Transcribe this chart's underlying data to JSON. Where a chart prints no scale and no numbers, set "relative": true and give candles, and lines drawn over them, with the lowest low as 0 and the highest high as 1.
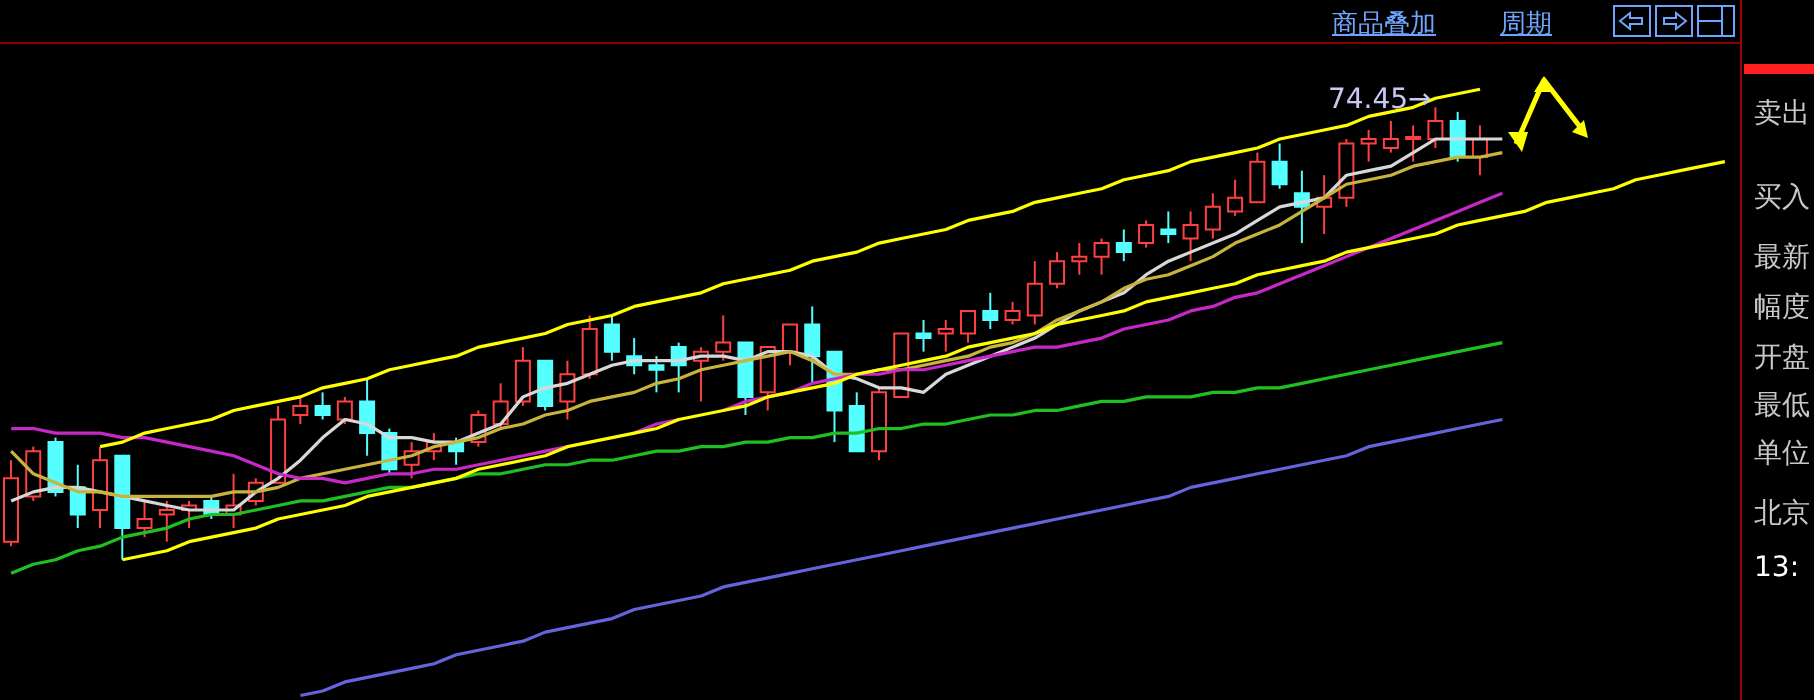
{
  "chart_data": {
    "type": "candlestick",
    "relative": true,
    "categories": [
      null,
      null,
      null,
      null,
      null,
      null,
      null,
      null,
      null,
      null,
      null,
      null,
      null,
      null,
      null,
      null,
      null,
      null,
      null,
      null,
      null,
      null,
      null,
      null,
      null,
      null,
      null,
      null,
      null,
      null,
      null,
      null,
      null,
      null,
      null,
      null,
      null,
      null,
      null,
      null,
      null,
      null,
      null,
      null,
      null,
      null,
      null,
      null,
      null,
      null,
      null,
      null,
      null,
      null,
      null,
      null,
      null,
      null,
      null,
      null,
      null,
      null,
      null,
      null,
      null,
      null,
      null,
      null,
      null,
      null,
      null,
      null,
      null,
      null,
      null,
      null,
      null,
      null
    ],
    "ohlc": [
      [
        0.04,
        0.22,
        0.03,
        0.18
      ],
      [
        0.14,
        0.25,
        0.13,
        0.24
      ],
      [
        0.26,
        0.27,
        0.14,
        0.15
      ],
      [
        0.16,
        0.21,
        0.07,
        0.1
      ],
      [
        0.11,
        0.25,
        0.07,
        0.22
      ],
      [
        0.23,
        0.23,
        0,
        0.07
      ],
      [
        0.07,
        0.13,
        0.05,
        0.09
      ],
      [
        0.1,
        0.13,
        0.04,
        0.11
      ],
      [
        0.11,
        0.13,
        0.07,
        0.12
      ],
      [
        0.13,
        0.14,
        0.09,
        0.1
      ],
      [
        0.1,
        0.19,
        0.07,
        0.12
      ],
      [
        0.13,
        0.18,
        0.12,
        0.17
      ],
      [
        0.17,
        0.34,
        0.17,
        0.31
      ],
      [
        0.32,
        0.36,
        0.3,
        0.34
      ],
      [
        0.34,
        0.37,
        0.31,
        0.32
      ],
      [
        0.31,
        0.36,
        0.3,
        0.35
      ],
      [
        0.35,
        0.4,
        0.23,
        0.28
      ],
      [
        0.28,
        0.29,
        0.19,
        0.2
      ],
      [
        0.21,
        0.26,
        0.18,
        0.24
      ],
      [
        0.24,
        0.28,
        0.22,
        0.26
      ],
      [
        0.26,
        0.27,
        0.21,
        0.24
      ],
      [
        0.26,
        0.33,
        0.25,
        0.32
      ],
      [
        0.3,
        0.39,
        0.29,
        0.35
      ],
      [
        0.35,
        0.47,
        0.34,
        0.44
      ],
      [
        0.44,
        0.44,
        0.33,
        0.34
      ],
      [
        0.35,
        0.44,
        0.31,
        0.41
      ],
      [
        0.41,
        0.54,
        0.4,
        0.51
      ],
      [
        0.52,
        0.54,
        0.44,
        0.46
      ],
      [
        0.45,
        0.49,
        0.41,
        0.43
      ],
      [
        0.43,
        0.45,
        0.37,
        0.42
      ],
      [
        0.47,
        0.48,
        0.37,
        0.43
      ],
      [
        0.44,
        0.47,
        0.35,
        0.46
      ],
      [
        0.46,
        0.54,
        0.44,
        0.48
      ],
      [
        0.48,
        0.48,
        0.32,
        0.36
      ],
      [
        0.37,
        0.47,
        0.33,
        0.47
      ],
      [
        0.46,
        0.52,
        0.43,
        0.52
      ],
      [
        0.52,
        0.56,
        0.39,
        0.45
      ],
      [
        0.46,
        0.46,
        0.26,
        0.33
      ],
      [
        0.34,
        0.37,
        0.24,
        0.24
      ],
      [
        0.24,
        0.38,
        0.22,
        0.37
      ],
      [
        0.36,
        0.5,
        0.36,
        0.5
      ],
      [
        0.5,
        0.53,
        0.46,
        0.49
      ],
      [
        0.5,
        0.53,
        0.46,
        0.51
      ],
      [
        0.5,
        0.55,
        0.48,
        0.55
      ],
      [
        0.55,
        0.59,
        0.51,
        0.53
      ],
      [
        0.53,
        0.57,
        0.52,
        0.55
      ],
      [
        0.54,
        0.66,
        0.52,
        0.61
      ],
      [
        0.61,
        0.68,
        0.6,
        0.66
      ],
      [
        0.66,
        0.7,
        0.63,
        0.67
      ],
      [
        0.67,
        0.71,
        0.63,
        0.7
      ],
      [
        0.7,
        0.73,
        0.66,
        0.68
      ],
      [
        0.7,
        0.75,
        0.69,
        0.74
      ],
      [
        0.73,
        0.77,
        0.7,
        0.72
      ],
      [
        0.71,
        0.77,
        0.66,
        0.74
      ],
      [
        0.73,
        0.81,
        0.71,
        0.78
      ],
      [
        0.77,
        0.84,
        0.76,
        0.8
      ],
      [
        0.79,
        0.9,
        0.79,
        0.88
      ],
      [
        0.88,
        0.92,
        0.82,
        0.83
      ],
      [
        0.81,
        0.86,
        0.7,
        0.78
      ],
      [
        0.78,
        0.85,
        0.72,
        0.8
      ],
      [
        0.8,
        0.93,
        0.78,
        0.92
      ],
      [
        0.92,
        0.95,
        0.88,
        0.93
      ],
      [
        0.91,
        0.97,
        0.9,
        0.93
      ],
      [
        0.93,
        0.96,
        0.88,
        0.93
      ],
      [
        0.93,
        1,
        0.91,
        0.97
      ],
      [
        0.97,
        0.99,
        0.88,
        0.89
      ],
      [
        0.89,
        0.96,
        0.85,
        0.93
      ],
      null,
      null,
      null,
      null,
      null,
      null,
      null,
      null,
      null,
      null,
      null
    ],
    "series": [
      {
        "type": "line",
        "color": "#d8d8d8",
        "values": [
          0.13,
          0.15,
          0.16,
          0.16,
          0.15,
          0.14,
          0.13,
          0.12,
          0.11,
          0.11,
          0.11,
          0.15,
          0.18,
          0.22,
          0.27,
          0.31,
          0.3,
          0.27,
          0.27,
          0.26,
          0.26,
          0.28,
          0.3,
          0.36,
          0.38,
          0.39,
          0.41,
          0.43,
          0.44,
          0.44,
          0.44,
          0.45,
          0.45,
          0.44,
          0.46,
          0.46,
          0.45,
          0.41,
          0.4,
          0.38,
          0.38,
          0.37,
          0.41,
          0.43,
          0.45,
          0.47,
          0.49,
          0.52,
          0.55,
          0.57,
          0.59,
          0.63,
          0.66,
          0.68,
          0.7,
          0.72,
          0.75,
          0.78,
          0.79,
          0.8,
          0.85,
          0.86,
          0.87,
          0.9,
          0.93,
          0.93,
          0.93,
          0.93,
          null,
          null,
          null,
          null,
          null,
          null,
          null,
          null,
          null,
          null
        ]
      },
      {
        "type": "line",
        "color": "#c8b43c",
        "values": [
          0.24,
          0.19,
          0.17,
          0.15,
          0.15,
          0.14,
          0.14,
          0.14,
          0.14,
          0.14,
          0.15,
          0.15,
          0.16,
          0.18,
          0.19,
          0.2,
          0.21,
          0.22,
          0.23,
          0.25,
          0.26,
          0.27,
          0.29,
          0.3,
          0.32,
          0.33,
          0.35,
          0.36,
          0.37,
          0.39,
          0.4,
          0.42,
          0.43,
          0.44,
          0.45,
          0.46,
          0.44,
          0.41,
          0.41,
          0.42,
          0.42,
          0.43,
          0.44,
          0.45,
          0.47,
          0.48,
          0.5,
          0.53,
          0.55,
          0.57,
          0.6,
          0.62,
          0.63,
          0.65,
          0.67,
          0.7,
          0.72,
          0.74,
          0.77,
          0.8,
          0.83,
          0.84,
          0.85,
          0.87,
          0.88,
          0.89,
          0.89,
          0.9,
          null,
          null,
          null,
          null,
          null,
          null,
          null,
          null,
          null,
          null
        ]
      },
      {
        "type": "line",
        "color": "#c828c8",
        "values": [
          0.29,
          0.29,
          0.28,
          0.28,
          0.28,
          0.27,
          0.27,
          0.26,
          0.25,
          0.24,
          0.23,
          0.21,
          0.19,
          0.18,
          0.18,
          0.17,
          0.18,
          0.19,
          0.19,
          0.2,
          0.2,
          0.21,
          0.22,
          0.23,
          0.24,
          0.25,
          null,
          null,
          0.28,
          0.3,
          0.31,
          null,
          0.33,
          0.35,
          0.36,
          0.37,
          0.39,
          0.4,
          0.41,
          0.41,
          0.42,
          0.42,
          0.43,
          0.44,
          0.45,
          0.46,
          0.47,
          0.47,
          0.48,
          0.49,
          0.51,
          0.52,
          0.53,
          0.55,
          0.56,
          0.58,
          0.59,
          0.61,
          0.63,
          0.65,
          0.67,
          0.69,
          0.71,
          0.73,
          0.75,
          0.77,
          0.79,
          0.81,
          null,
          null,
          null,
          null,
          null,
          null,
          null,
          null,
          null,
          null
        ]
      },
      {
        "type": "line",
        "color": "#20c020",
        "values": [
          -0.03,
          -0.01,
          0,
          0.02,
          0.03,
          0.05,
          0.06,
          0.07,
          0.09,
          0.1,
          0.1,
          0.11,
          0.12,
          0.13,
          0.13,
          0.14,
          0.15,
          0.16,
          0.16,
          0.17,
          0.18,
          0.19,
          0.19,
          0.2,
          0.21,
          0.21,
          0.22,
          0.22,
          0.23,
          0.24,
          0.24,
          0.25,
          0.25,
          0.26,
          0.26,
          0.27,
          0.27,
          0.28,
          0.28,
          0.29,
          0.29,
          0.3,
          0.3,
          0.31,
          0.32,
          0.32,
          0.33,
          0.33,
          0.34,
          0.35,
          0.35,
          0.36,
          0.36,
          0.36,
          0.37,
          0.37,
          0.38,
          0.38,
          0.39,
          0.4,
          0.41,
          0.42,
          0.43,
          0.44,
          0.45,
          0.46,
          0.47,
          0.48,
          null,
          null,
          null,
          null,
          null,
          null,
          null,
          null,
          null,
          null
        ]
      },
      {
        "type": "line",
        "color": "#6464dc",
        "values": [
          null,
          null,
          null,
          null,
          null,
          null,
          null,
          null,
          null,
          null,
          null,
          null,
          null,
          -0.3,
          -0.29,
          -0.27,
          -0.26,
          -0.25,
          -0.24,
          -0.23,
          -0.21,
          -0.2,
          -0.19,
          -0.18,
          -0.16,
          -0.15,
          -0.14,
          -0.13,
          -0.11,
          -0.1,
          -0.09,
          -0.08,
          -0.06,
          -0.05,
          -0.04,
          -0.03,
          -0.02,
          -0.01,
          0,
          0.01,
          0.02,
          0.03,
          0.04,
          0.05,
          0.06,
          0.07,
          0.08,
          0.09,
          0.1,
          0.11,
          0.12,
          0.13,
          0.14,
          0.16,
          0.17,
          0.18,
          0.19,
          0.2,
          0.21,
          0.22,
          0.23,
          0.25,
          0.26,
          0.27,
          0.28,
          0.29,
          0.3,
          0.31,
          null,
          null,
          null,
          null,
          null,
          null,
          null,
          null,
          null,
          null
        ]
      },
      {
        "type": "line",
        "color": "#ffff00",
        "values": [
          null,
          null,
          null,
          null,
          0.25,
          0.26,
          0.28,
          0.29,
          0.3,
          0.31,
          0.33,
          0.34,
          0.35,
          0.36,
          0.38,
          0.39,
          0.4,
          0.42,
          0.43,
          0.44,
          0.45,
          0.47,
          0.48,
          0.49,
          0.5,
          0.52,
          0.53,
          0.54,
          0.56,
          0.57,
          0.58,
          0.59,
          0.61,
          0.62,
          0.63,
          0.64,
          0.66,
          0.67,
          0.68,
          0.7,
          0.71,
          0.72,
          0.73,
          0.75,
          0.76,
          0.77,
          0.79,
          0.8,
          0.81,
          0.82,
          0.84,
          0.85,
          0.86,
          0.88,
          0.89,
          0.9,
          0.91,
          0.93,
          0.94,
          0.95,
          0.96,
          0.98,
          0.99,
          1.0,
          1.02,
          1.03,
          1.04,
          null,
          null,
          null,
          null,
          null,
          null,
          null,
          null,
          null,
          null,
          null
        ]
      },
      {
        "type": "line",
        "color": "#ffff00",
        "values": [
          null,
          null,
          null,
          null,
          null,
          0,
          0.01,
          0.02,
          0.04,
          0.05,
          0.06,
          0.07,
          0.09,
          0.1,
          0.11,
          0.12,
          0.14,
          0.15,
          0.16,
          0.17,
          0.18,
          0.2,
          0.21,
          0.22,
          0.23,
          0.25,
          0.26,
          0.27,
          0.28,
          0.29,
          0.31,
          0.32,
          0.33,
          0.34,
          0.36,
          0.37,
          0.38,
          0.39,
          0.41,
          0.42,
          0.43,
          0.44,
          0.45,
          0.47,
          0.48,
          0.49,
          0.5,
          0.52,
          0.53,
          0.54,
          0.55,
          0.57,
          0.58,
          0.59,
          0.6,
          0.61,
          0.63,
          0.64,
          0.65,
          0.66,
          0.68,
          0.69,
          0.7,
          0.71,
          0.72,
          0.74,
          0.75,
          0.76,
          0.77,
          0.79,
          0.8,
          0.81,
          0.82,
          0.84,
          0.85,
          0.86,
          0.87,
          0.88
        ]
      }
    ],
    "annotations": [
      "商品叠加",
      "周期",
      {
        "text": "74.45→",
        "y": 1
      },
      "卖出",
      "买入",
      "最新",
      "幅度",
      "开盘",
      "最低",
      "单位",
      "北京",
      "13:"
    ]
  }
}
